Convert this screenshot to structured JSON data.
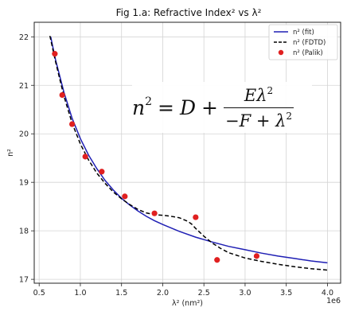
{
  "chart_data": {
    "type": "line",
    "title": "Fig 1.a: Refractive Index² vs λ²",
    "xlabel": "λ² (nm²)",
    "ylabel": "n²",
    "x_offset_label": "1e6",
    "xlim": [
      0.44,
      4.16
    ],
    "ylim": [
      16.92,
      22.3
    ],
    "xticks": [
      0.5,
      1.0,
      1.5,
      2.0,
      2.5,
      3.0,
      3.5,
      4.0
    ],
    "xtick_labels": [
      "0.5",
      "1.0",
      "1.5",
      "2.0",
      "2.5",
      "3.0",
      "3.5",
      "4.0"
    ],
    "yticks": [
      17,
      18,
      19,
      20,
      21,
      22
    ],
    "ytick_labels": [
      "17",
      "18",
      "19",
      "20",
      "21",
      "22"
    ],
    "grid": true,
    "legend_position": "top-right",
    "series": [
      {
        "name": "n² (fit)",
        "kind": "line",
        "color": "#1f1fb4",
        "dashed": false,
        "x": [
          0.64,
          0.7,
          0.8,
          0.9,
          1.0,
          1.1,
          1.2,
          1.3,
          1.4,
          1.5,
          1.6,
          1.7,
          1.8,
          1.9,
          2.0,
          2.2,
          2.4,
          2.6,
          2.8,
          3.0,
          3.2,
          3.4,
          3.6,
          3.8,
          4.0
        ],
        "y": [
          22.0,
          21.52,
          20.86,
          20.32,
          19.9,
          19.56,
          19.28,
          19.04,
          18.84,
          18.67,
          18.53,
          18.41,
          18.3,
          18.21,
          18.13,
          17.99,
          17.87,
          17.77,
          17.68,
          17.61,
          17.54,
          17.48,
          17.43,
          17.38,
          17.34
        ]
      },
      {
        "name": "n² (FDTD)",
        "kind": "line",
        "color": "#000000",
        "dashed": true,
        "x": [
          0.63,
          0.7,
          0.8,
          0.9,
          1.0,
          1.1,
          1.2,
          1.3,
          1.4,
          1.5,
          1.6,
          1.7,
          1.8,
          1.9,
          2.0,
          2.1,
          2.2,
          2.3,
          2.35,
          2.4,
          2.5,
          2.6,
          2.7,
          2.8,
          3.0,
          3.2,
          3.4,
          3.6,
          3.8,
          4.0
        ],
        "y": [
          22.02,
          21.48,
          20.78,
          20.22,
          19.79,
          19.46,
          19.19,
          18.98,
          18.8,
          18.66,
          18.54,
          18.44,
          18.37,
          18.33,
          18.32,
          18.3,
          18.27,
          18.2,
          18.14,
          18.05,
          17.89,
          17.75,
          17.64,
          17.55,
          17.44,
          17.37,
          17.31,
          17.26,
          17.22,
          17.19
        ]
      },
      {
        "name": "n² (Palik)",
        "kind": "scatter",
        "color": "#e02020",
        "dashed": false,
        "x": [
          0.69,
          0.78,
          0.9,
          1.06,
          1.26,
          1.54,
          1.9,
          2.4,
          2.66,
          3.14
        ],
        "y": [
          21.65,
          20.8,
          20.2,
          19.53,
          19.22,
          18.71,
          18.36,
          18.28,
          17.4,
          17.48
        ]
      }
    ]
  },
  "formula": {
    "lhs": "n",
    "lhs_power": "2",
    "equals": "=",
    "d": "D",
    "plus": "+",
    "numerator": "Eλ",
    "numerator_power": "2",
    "denominator": "−F + λ",
    "denominator_power": "2"
  }
}
